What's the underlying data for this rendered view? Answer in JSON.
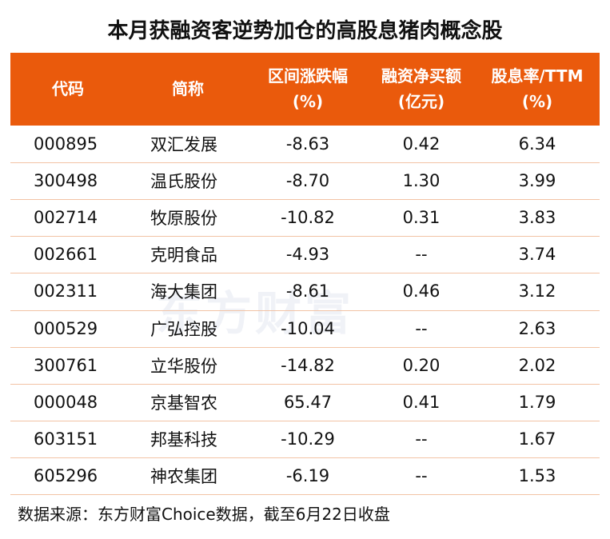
{
  "title": "本月获融资客逆势加仓的高股息猪肉概念股",
  "table": {
    "header": [
      [
        "代码"
      ],
      [
        "简称"
      ],
      [
        "区间涨跌幅",
        "(%)"
      ],
      [
        "融资净买额",
        "(亿元)"
      ],
      [
        "股息率/TTM",
        "(%)"
      ]
    ],
    "rows": [
      [
        "000895",
        "双汇发展",
        "-8.63",
        "0.42",
        "6.34"
      ],
      [
        "300498",
        "温氏股份",
        "-8.70",
        "1.30",
        "3.99"
      ],
      [
        "002714",
        "牧原股份",
        "-10.82",
        "0.31",
        "3.83"
      ],
      [
        "002661",
        "克明食品",
        "-4.93",
        "--",
        "3.74"
      ],
      [
        "002311",
        "海大集团",
        "-8.61",
        "0.46",
        "3.12"
      ],
      [
        "000529",
        "广弘控股",
        "-10.04",
        "--",
        "2.63"
      ],
      [
        "300761",
        "立华股份",
        "-14.82",
        "0.20",
        "2.02"
      ],
      [
        "000048",
        "京基智农",
        "65.47",
        "0.41",
        "1.79"
      ],
      [
        "603151",
        "邦基科技",
        "-10.29",
        "--",
        "1.67"
      ],
      [
        "605296",
        "神农集团",
        "-6.19",
        "--",
        "1.53"
      ]
    ]
  },
  "watermark": "东方财富",
  "footer": "数据来源：东方财富Choice数据，截至6月22日收盘"
}
